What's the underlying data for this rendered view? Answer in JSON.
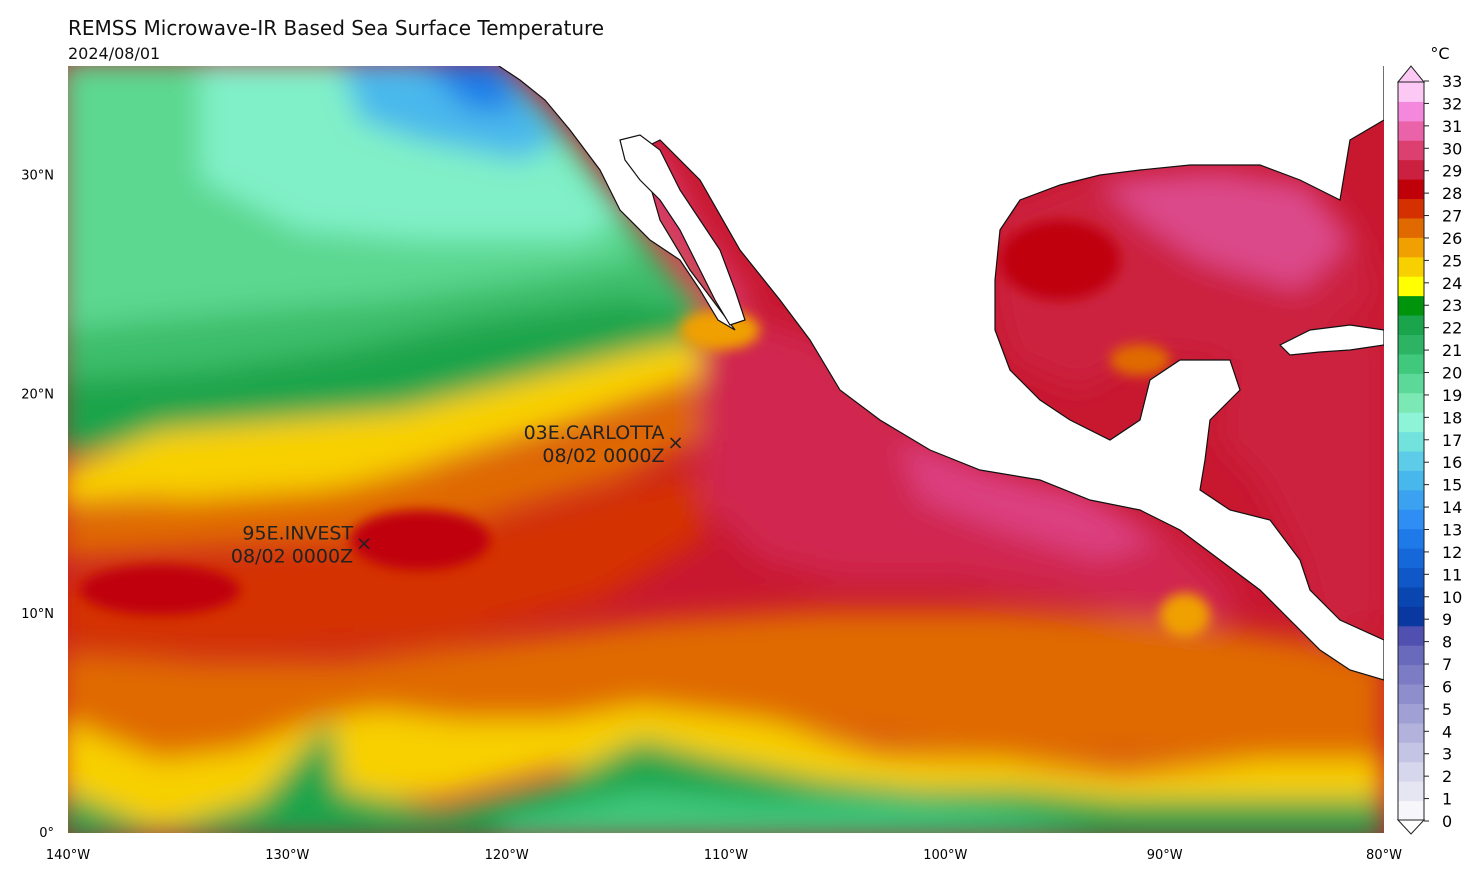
{
  "header": {
    "title": "REMSS Microwave-IR Based Sea Surface Temperature",
    "date": "2024/08/01"
  },
  "map": {
    "lat_range": [
      0,
      35
    ],
    "lon_range": [
      -140,
      -80
    ],
    "lat_ticks": [
      {
        "value": 0,
        "label": "0°"
      },
      {
        "value": 10,
        "label": "10°N"
      },
      {
        "value": 20,
        "label": "20°N"
      },
      {
        "value": 30,
        "label": "30°N"
      }
    ],
    "lon_ticks": [
      {
        "value": -140,
        "label": "140°W"
      },
      {
        "value": -130,
        "label": "130°W"
      },
      {
        "value": -120,
        "label": "120°W"
      },
      {
        "value": -110,
        "label": "110°W"
      },
      {
        "value": -100,
        "label": "100°W"
      },
      {
        "value": -90,
        "label": "90°W"
      },
      {
        "value": -80,
        "label": "80°W"
      }
    ],
    "storms": [
      {
        "name": "03E.CARLOTTA",
        "time": "08/02 0000Z",
        "lat": 17.8,
        "lon": -112.3
      },
      {
        "name": "95E.INVEST",
        "time": "08/02 0000Z",
        "lat": 13.2,
        "lon": -126.5
      }
    ]
  },
  "colorbar": {
    "unit": "°C",
    "min": 0,
    "max": 33,
    "labels": [
      "0",
      "1",
      "2",
      "3",
      "4",
      "5",
      "6",
      "7",
      "8",
      "9",
      "10",
      "11",
      "12",
      "13",
      "14",
      "15",
      "16",
      "17",
      "18",
      "19",
      "20",
      "21",
      "22",
      "23",
      "24",
      "25",
      "26",
      "27",
      "28",
      "29",
      "30",
      "31",
      "32",
      "33"
    ],
    "colors": [
      "#f6f6fb",
      "#e6e6f3",
      "#d6d6ec",
      "#c4c4e4",
      "#b2b2dc",
      "#a0a0d4",
      "#8e8ecc",
      "#7c7cc4",
      "#6a6abc",
      "#5050b0",
      "#0838a0",
      "#0a46b0",
      "#1058c8",
      "#1668d8",
      "#1e7ae8",
      "#2e8ef4",
      "#3aa2f0",
      "#48b8ec",
      "#5ccce8",
      "#72e2dc",
      "#8ef4d8",
      "#7ce8b4",
      "#5cd898",
      "#40c87c",
      "#2cb464",
      "#1aa44c",
      "#00940c",
      "#ffff00",
      "#f8d000",
      "#f0a000",
      "#e06a00",
      "#d43000",
      "#c00008",
      "#cc2040",
      "#dc4070",
      "#ea62a8",
      "#f488dc",
      "#fcc8f4"
    ]
  }
}
